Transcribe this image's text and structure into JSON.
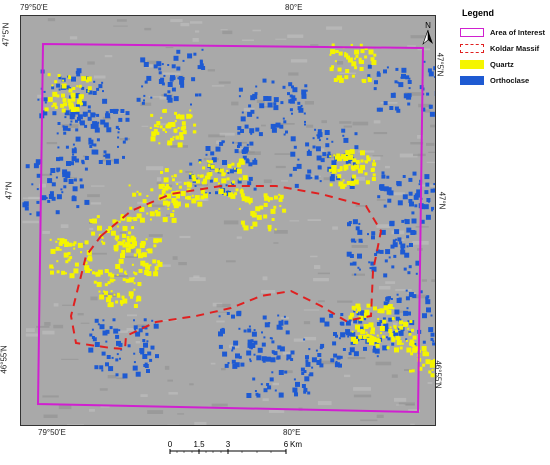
{
  "legend": {
    "title": "Legend",
    "items": [
      {
        "label": "Area of Interest",
        "style": "aoi",
        "color": "#d020d0"
      },
      {
        "label": "Koldar Massif",
        "style": "massif",
        "color": "#e02020"
      },
      {
        "label": "Quartz",
        "style": "fill",
        "color": "#f5f500"
      },
      {
        "label": "Orthoclase",
        "style": "fill",
        "color": "#1e5ad2"
      }
    ]
  },
  "graticule": {
    "top_left": "79°50'E",
    "top_right": "80°E",
    "bottom_left": "79°50'E",
    "bottom_right": "80°E",
    "left_top": "47°5'N",
    "left_mid": "47°N",
    "left_bottom": "46°55'N",
    "right_top": "47°5'N",
    "right_mid": "47°N",
    "right_bottom": "46°55'N"
  },
  "north_arrow": {
    "letter": "N"
  },
  "scale_bar": {
    "ticks": [
      "0",
      "1.5",
      "3",
      "6"
    ],
    "unit": "Km"
  },
  "colors": {
    "quartz": "#f5f500",
    "orthoclase": "#1e5ad2",
    "aoi": "#d020d0",
    "massif": "#e02020",
    "background": "#a9a9a9"
  }
}
